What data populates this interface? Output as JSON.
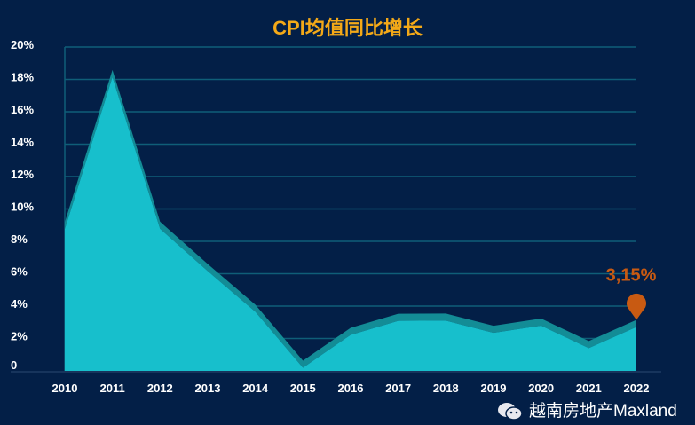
{
  "chart_data": {
    "type": "area",
    "title": "CPI均值同比增长",
    "categories": [
      "2010",
      "2011",
      "2012",
      "2013",
      "2014",
      "2015",
      "2016",
      "2017",
      "2018",
      "2019",
      "2020",
      "2021",
      "2022"
    ],
    "values": [
      9.19,
      18.58,
      9.21,
      6.6,
      4.09,
      0.63,
      2.66,
      3.53,
      3.54,
      2.79,
      3.23,
      1.84,
      3.15
    ],
    "yticks": [
      "0",
      "2%",
      "4%",
      "6%",
      "8%",
      "10%",
      "12%",
      "14%",
      "16%",
      "18%",
      "20%"
    ],
    "ylim": [
      0,
      20
    ],
    "grid": true,
    "annotation": {
      "category": "2022",
      "label": "3,15%"
    },
    "colors": {
      "background": "#031f47",
      "area": "#17bfcc",
      "area_top": "#138c96",
      "grid": "#0f5e78",
      "title": "#f4a918",
      "marker": "#c85a12"
    }
  },
  "watermark": "越南房地产Maxland"
}
